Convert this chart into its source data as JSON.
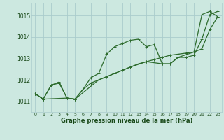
{
  "title": "Graphe pression niveau de la mer (hPa)",
  "bg_color": "#cce8e0",
  "grid_color": "#aacccc",
  "line_color": "#2d6b2d",
  "xlim": [
    -0.5,
    23.5
  ],
  "ylim": [
    1010.5,
    1015.6
  ],
  "yticks": [
    1011,
    1012,
    1013,
    1014,
    1015
  ],
  "xtick_labels": [
    "0",
    "1",
    "2",
    "3",
    "4",
    "5",
    "6",
    "7",
    "8",
    "9",
    "10",
    "11",
    "12",
    "13",
    "14",
    "15",
    "16",
    "17",
    "18",
    "19",
    "20",
    "21",
    "22",
    "23"
  ],
  "series1": [
    [
      0,
      1011.35
    ],
    [
      1,
      1011.1
    ],
    [
      2,
      1011.75
    ],
    [
      3,
      1011.9
    ],
    [
      4,
      1011.15
    ],
    [
      5,
      1011.1
    ],
    [
      6,
      1011.55
    ],
    [
      7,
      1012.1
    ],
    [
      8,
      1012.3
    ],
    [
      9,
      1013.2
    ],
    [
      10,
      1013.55
    ],
    [
      11,
      1013.7
    ],
    [
      12,
      1013.85
    ],
    [
      13,
      1013.9
    ],
    [
      14,
      1013.55
    ],
    [
      15,
      1013.65
    ],
    [
      16,
      1012.75
    ],
    [
      17,
      1012.75
    ],
    [
      18,
      1013.05
    ],
    [
      19,
      1013.05
    ],
    [
      20,
      1013.15
    ],
    [
      21,
      1013.9
    ],
    [
      22,
      1015.05
    ],
    [
      23,
      1015.2
    ]
  ],
  "series2": [
    [
      0,
      1011.35
    ],
    [
      1,
      1011.1
    ],
    [
      2,
      1011.75
    ],
    [
      3,
      1011.85
    ],
    [
      4,
      1011.15
    ],
    [
      5,
      1011.1
    ],
    [
      6,
      1011.55
    ],
    [
      7,
      1011.85
    ],
    [
      8,
      1012.0
    ],
    [
      9,
      1012.15
    ],
    [
      10,
      1012.3
    ],
    [
      11,
      1012.45
    ],
    [
      12,
      1012.6
    ],
    [
      13,
      1012.75
    ],
    [
      14,
      1012.85
    ],
    [
      15,
      1012.95
    ],
    [
      16,
      1013.05
    ],
    [
      17,
      1013.15
    ],
    [
      18,
      1013.2
    ],
    [
      19,
      1013.25
    ],
    [
      20,
      1013.3
    ],
    [
      21,
      1013.45
    ],
    [
      22,
      1014.35
    ],
    [
      23,
      1014.95
    ]
  ],
  "series3": [
    [
      0,
      1011.35
    ],
    [
      1,
      1011.1
    ],
    [
      4,
      1011.15
    ],
    [
      5,
      1011.1
    ],
    [
      8,
      1012.0
    ],
    [
      10,
      1012.3
    ],
    [
      12,
      1012.6
    ],
    [
      14,
      1012.85
    ],
    [
      16,
      1012.75
    ],
    [
      17,
      1012.75
    ],
    [
      18,
      1013.05
    ],
    [
      20,
      1013.3
    ],
    [
      21,
      1015.05
    ],
    [
      22,
      1015.2
    ],
    [
      23,
      1014.95
    ]
  ],
  "linewidth": 0.9,
  "markersize": 3.0
}
